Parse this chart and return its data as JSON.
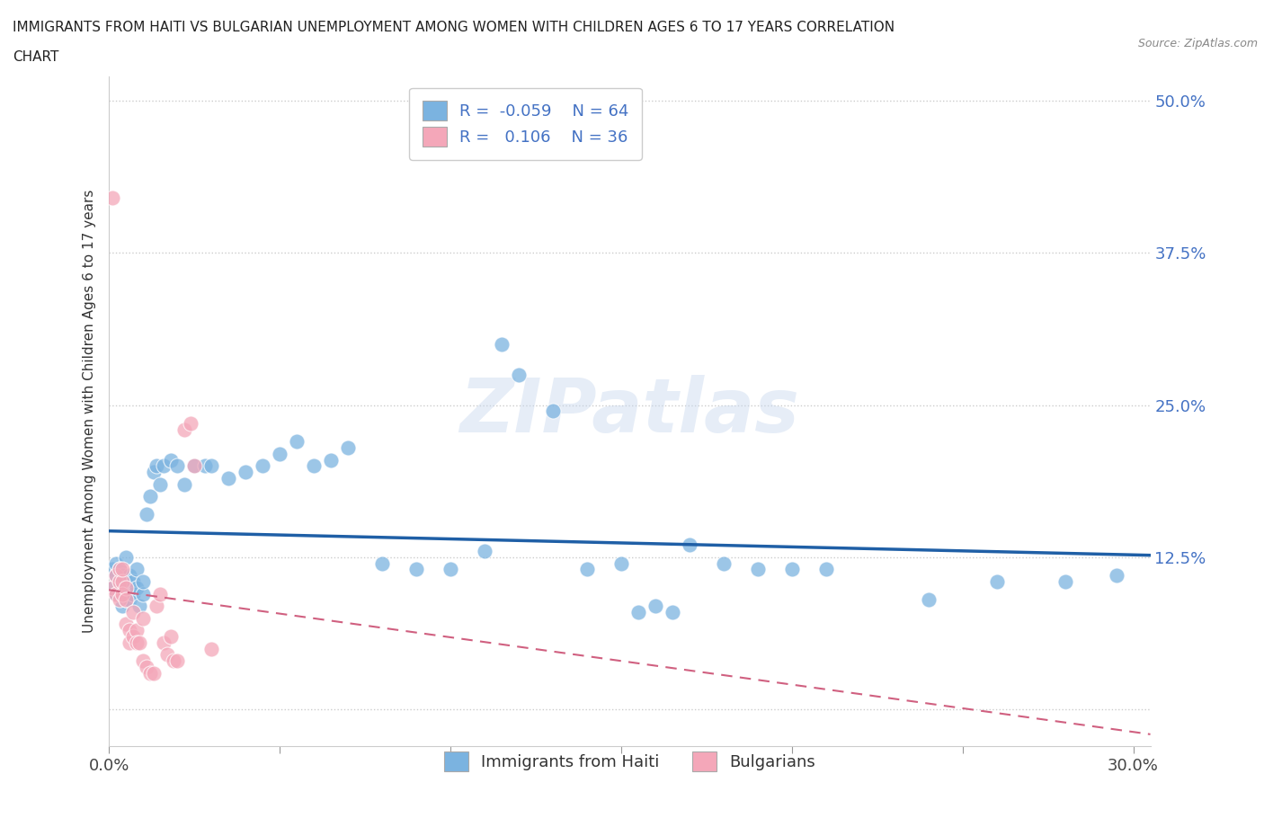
{
  "title_line1": "IMMIGRANTS FROM HAITI VS BULGARIAN UNEMPLOYMENT AMONG WOMEN WITH CHILDREN AGES 6 TO 17 YEARS CORRELATION",
  "title_line2": "CHART",
  "source_text": "Source: ZipAtlas.com",
  "ylabel": "Unemployment Among Women with Children Ages 6 to 17 years",
  "xlim": [
    0.0,
    0.305
  ],
  "ylim": [
    -0.03,
    0.52
  ],
  "yticks": [
    0.0,
    0.125,
    0.25,
    0.375,
    0.5
  ],
  "ytick_labels": [
    "",
    "12.5%",
    "25.0%",
    "37.5%",
    "50.0%"
  ],
  "xticks": [
    0.0,
    0.05,
    0.1,
    0.15,
    0.2,
    0.25,
    0.3
  ],
  "xtick_labels": [
    "0.0%",
    "",
    "",
    "",
    "",
    "",
    "30.0%"
  ],
  "haiti_color": "#7bb3e0",
  "haiti_edge": "#5a9fd4",
  "bulgarian_color": "#f4a7b9",
  "bulgarian_edge": "#e08090",
  "haiti_line_color": "#1f5fa6",
  "bulgarian_line_color": "#d06080",
  "haiti_R": -0.059,
  "haiti_N": 64,
  "bulgarian_R": 0.106,
  "bulgarian_N": 36,
  "legend_label_haiti": "Immigrants from Haiti",
  "legend_label_bulgarian": "Bulgarians",
  "watermark": "ZIPatlas",
  "haiti_x": [
    0.001,
    0.001,
    0.002,
    0.002,
    0.002,
    0.003,
    0.003,
    0.003,
    0.004,
    0.004,
    0.004,
    0.005,
    0.005,
    0.005,
    0.006,
    0.006,
    0.007,
    0.007,
    0.008,
    0.008,
    0.009,
    0.01,
    0.01,
    0.011,
    0.012,
    0.013,
    0.014,
    0.015,
    0.016,
    0.018,
    0.02,
    0.022,
    0.025,
    0.028,
    0.03,
    0.035,
    0.04,
    0.045,
    0.05,
    0.055,
    0.06,
    0.065,
    0.07,
    0.08,
    0.09,
    0.1,
    0.11,
    0.115,
    0.12,
    0.13,
    0.14,
    0.15,
    0.155,
    0.16,
    0.165,
    0.17,
    0.18,
    0.19,
    0.2,
    0.21,
    0.24,
    0.26,
    0.28,
    0.295
  ],
  "haiti_y": [
    0.115,
    0.1,
    0.095,
    0.11,
    0.12,
    0.105,
    0.115,
    0.095,
    0.1,
    0.11,
    0.085,
    0.09,
    0.105,
    0.125,
    0.11,
    0.09,
    0.105,
    0.095,
    0.115,
    0.1,
    0.085,
    0.095,
    0.105,
    0.16,
    0.175,
    0.195,
    0.2,
    0.185,
    0.2,
    0.205,
    0.2,
    0.185,
    0.2,
    0.2,
    0.2,
    0.19,
    0.195,
    0.2,
    0.21,
    0.22,
    0.2,
    0.205,
    0.215,
    0.12,
    0.115,
    0.115,
    0.13,
    0.3,
    0.275,
    0.245,
    0.115,
    0.12,
    0.08,
    0.085,
    0.08,
    0.135,
    0.12,
    0.115,
    0.115,
    0.115,
    0.09,
    0.105,
    0.105,
    0.11
  ],
  "bulgarian_x": [
    0.001,
    0.001,
    0.002,
    0.002,
    0.003,
    0.003,
    0.003,
    0.004,
    0.004,
    0.004,
    0.005,
    0.005,
    0.005,
    0.006,
    0.006,
    0.007,
    0.007,
    0.008,
    0.008,
    0.009,
    0.01,
    0.01,
    0.011,
    0.012,
    0.013,
    0.014,
    0.015,
    0.016,
    0.017,
    0.018,
    0.019,
    0.02,
    0.022,
    0.024,
    0.025,
    0.03
  ],
  "bulgarian_y": [
    0.42,
    0.1,
    0.11,
    0.095,
    0.105,
    0.09,
    0.115,
    0.105,
    0.115,
    0.095,
    0.1,
    0.09,
    0.07,
    0.065,
    0.055,
    0.08,
    0.06,
    0.065,
    0.055,
    0.055,
    0.04,
    0.075,
    0.035,
    0.03,
    0.03,
    0.085,
    0.095,
    0.055,
    0.045,
    0.06,
    0.04,
    0.04,
    0.23,
    0.235,
    0.2,
    0.05
  ]
}
